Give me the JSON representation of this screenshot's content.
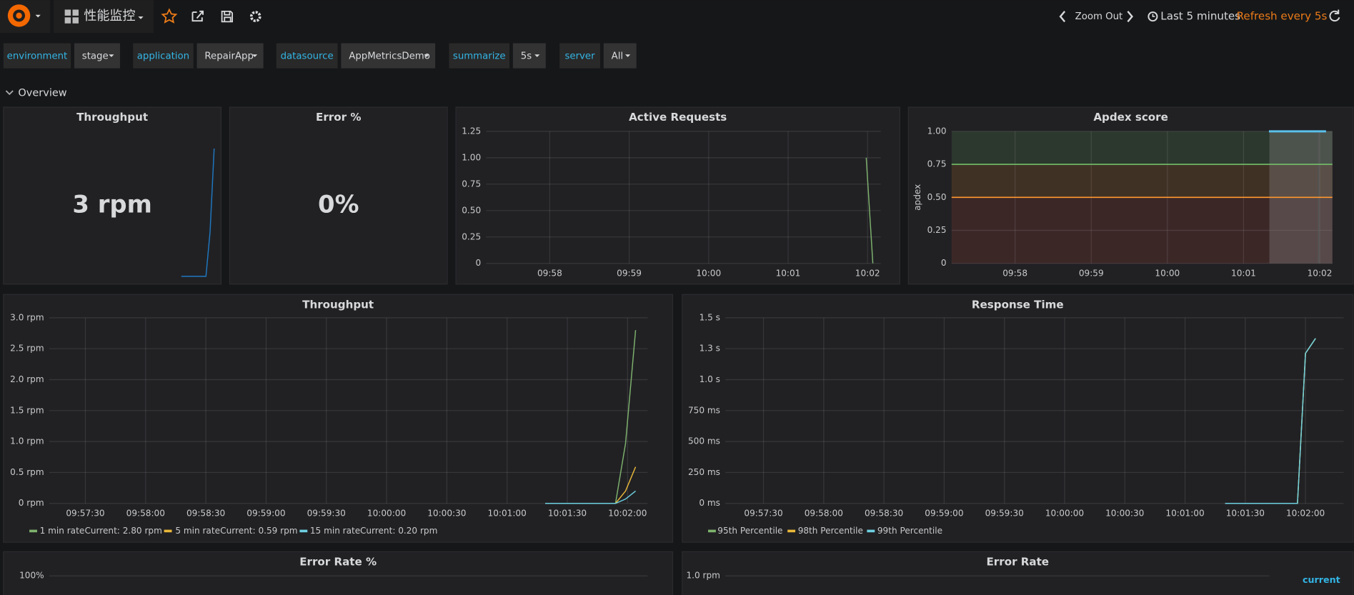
{
  "header": {
    "dashboard_title": "性能监控",
    "zoom_out": "Zoom Out",
    "time_range": "Last 5 minutes",
    "refresh": "Refresh every 5s"
  },
  "variables": [
    {
      "label": "environment",
      "value": "stage"
    },
    {
      "label": "application",
      "value": "RepairApp"
    },
    {
      "label": "datasource",
      "value": "AppMetricsDemo"
    },
    {
      "label": "summarize",
      "value": "5s"
    },
    {
      "label": "server",
      "value": "All"
    }
  ],
  "row_title": "Overview",
  "panels": [
    {
      "type": "singlestat",
      "title": "Throughput",
      "value": "3 rpm",
      "sparkline": [
        0,
        0,
        0,
        0,
        0,
        0,
        0,
        0.97,
        2.8
      ],
      "sparkline_color": "#1f78c1"
    },
    {
      "type": "singlestat",
      "title": "Error %",
      "value": "0%"
    },
    {
      "type": "line",
      "title": "Active Requests",
      "xlim": [
        "09:57:12",
        "10:02:10"
      ],
      "xticks": [
        "09:58",
        "09:59",
        "10:00",
        "10:01",
        "10:02"
      ],
      "ylim": [
        0,
        1.25
      ],
      "yticks": [
        0,
        0.25,
        {
          "value": 0.5,
          "label": "0.50"
        },
        0.75,
        {
          "value": 1,
          "label": "1.00"
        },
        1.25
      ],
      "series": [
        {
          "color": "#7eb26d",
          "x": [
            "10:01:59",
            "10:02:04"
          ],
          "values": [
            1,
            0
          ]
        }
      ]
    },
    {
      "type": "line",
      "title": "Apdex score",
      "ylabel": "apdex",
      "xlim": [
        "09:57:10",
        "10:02:10"
      ],
      "xticks": [
        "09:58",
        "09:59",
        "10:00",
        "10:01",
        "10:02"
      ],
      "ylim": [
        0,
        1
      ],
      "yticks": [
        0,
        0.25,
        {
          "value": 0.5,
          "label": "0.50"
        },
        0.75,
        {
          "value": 1,
          "label": "1.00"
        }
      ],
      "thresholds": [
        {
          "value": 0.75,
          "color": "#73bf69"
        },
        {
          "value": 0.5,
          "color": "#ff9830"
        }
      ],
      "region_colors": [
        "#73bf69",
        "#ff9830",
        "#e24d42"
      ],
      "series": [
        {
          "color": "#5bc0eb",
          "x": [
            "10:01:20",
            "10:02:05"
          ],
          "values": [
            1,
            1
          ]
        }
      ]
    },
    {
      "type": "line",
      "title": "Throughput",
      "xlim": [
        "09:57:12",
        "10:02:10"
      ],
      "xticks": [
        "09:57:30",
        "09:58:00",
        "09:58:30",
        "09:59:00",
        "09:59:30",
        "10:00:00",
        "10:00:30",
        "10:01:00",
        "10:01:30",
        "10:02:00"
      ],
      "ylim": [
        0,
        3
      ],
      "yticks": [
        {
          "value": 0,
          "label": "0 rpm"
        },
        {
          "value": 0.5,
          "label": "0.5 rpm"
        },
        {
          "value": 1,
          "label": "1.0 rpm"
        },
        {
          "value": 1.5,
          "label": "1.5 rpm"
        },
        {
          "value": 2,
          "label": "2.0 rpm"
        },
        {
          "value": 2.5,
          "label": "2.5 rpm"
        },
        {
          "value": 3,
          "label": "3.0 rpm"
        }
      ],
      "series": [
        {
          "name": "1 min rate",
          "current": "Current: 2.80 rpm",
          "color": "#7eb26d",
          "x": [
            "10:01:19",
            "10:01:54",
            "10:01:59",
            "10:02:04"
          ],
          "values": [
            0,
            0,
            0.97,
            2.8
          ]
        },
        {
          "name": "5 min rate",
          "current": "Current: 0.59 rpm",
          "color": "#eab839",
          "x": [
            "10:01:19",
            "10:01:54",
            "10:01:59",
            "10:02:04"
          ],
          "values": [
            0,
            0,
            0.2,
            0.59
          ]
        },
        {
          "name": "15 min rate",
          "current": "Current: 0.20 rpm",
          "color": "#6ed0e0",
          "x": [
            "10:01:19",
            "10:01:54",
            "10:01:59",
            "10:02:04"
          ],
          "values": [
            0,
            0,
            0.07,
            0.2
          ]
        }
      ]
    },
    {
      "type": "line",
      "title": "Response Time",
      "xlim": [
        "09:57:11",
        "10:02:19"
      ],
      "xticks": [
        "09:57:30",
        "09:58:00",
        "09:58:30",
        "09:59:00",
        "09:59:30",
        "10:00:00",
        "10:00:30",
        "10:01:00",
        "10:01:30",
        "10:02:00"
      ],
      "ylim": [
        0,
        1500
      ],
      "yticks": [
        {
          "value": 0,
          "label": "0 ms"
        },
        {
          "value": 250,
          "label": "250 ms"
        },
        {
          "value": 500,
          "label": "500 ms"
        },
        {
          "value": 750,
          "label": "750 ms"
        },
        {
          "value": 1000,
          "label": "1.0 s"
        },
        {
          "value": 1250,
          "label": "1.3 s"
        },
        {
          "value": 1500,
          "label": "1.5 s"
        }
      ],
      "series": [
        {
          "name": "95th Percentile",
          "color": "#7eb26d",
          "x": [
            "10:01:20",
            "10:01:56",
            "10:02:00",
            "10:02:05"
          ],
          "values": [
            0,
            0,
            1213,
            1333
          ]
        },
        {
          "name": "98th Percentile",
          "color": "#eab839",
          "x": [
            "10:01:20",
            "10:01:56",
            "10:02:00",
            "10:02:05"
          ],
          "values": [
            0,
            0,
            1213,
            1333
          ]
        },
        {
          "name": "99th Percentile",
          "color": "#6ed0e0",
          "x": [
            "10:01:20",
            "10:01:56",
            "10:02:00",
            "10:02:05"
          ],
          "values": [
            0,
            0,
            1213,
            1333
          ]
        }
      ]
    },
    {
      "type": "line",
      "title": "Error Rate %",
      "yticks": [
        {
          "value": 100,
          "label": "100%"
        }
      ]
    },
    {
      "type": "line",
      "title": "Error Rate",
      "yticks": [
        {
          "value": 1,
          "label": "1.0 rpm"
        }
      ],
      "legend_header": "current"
    }
  ]
}
